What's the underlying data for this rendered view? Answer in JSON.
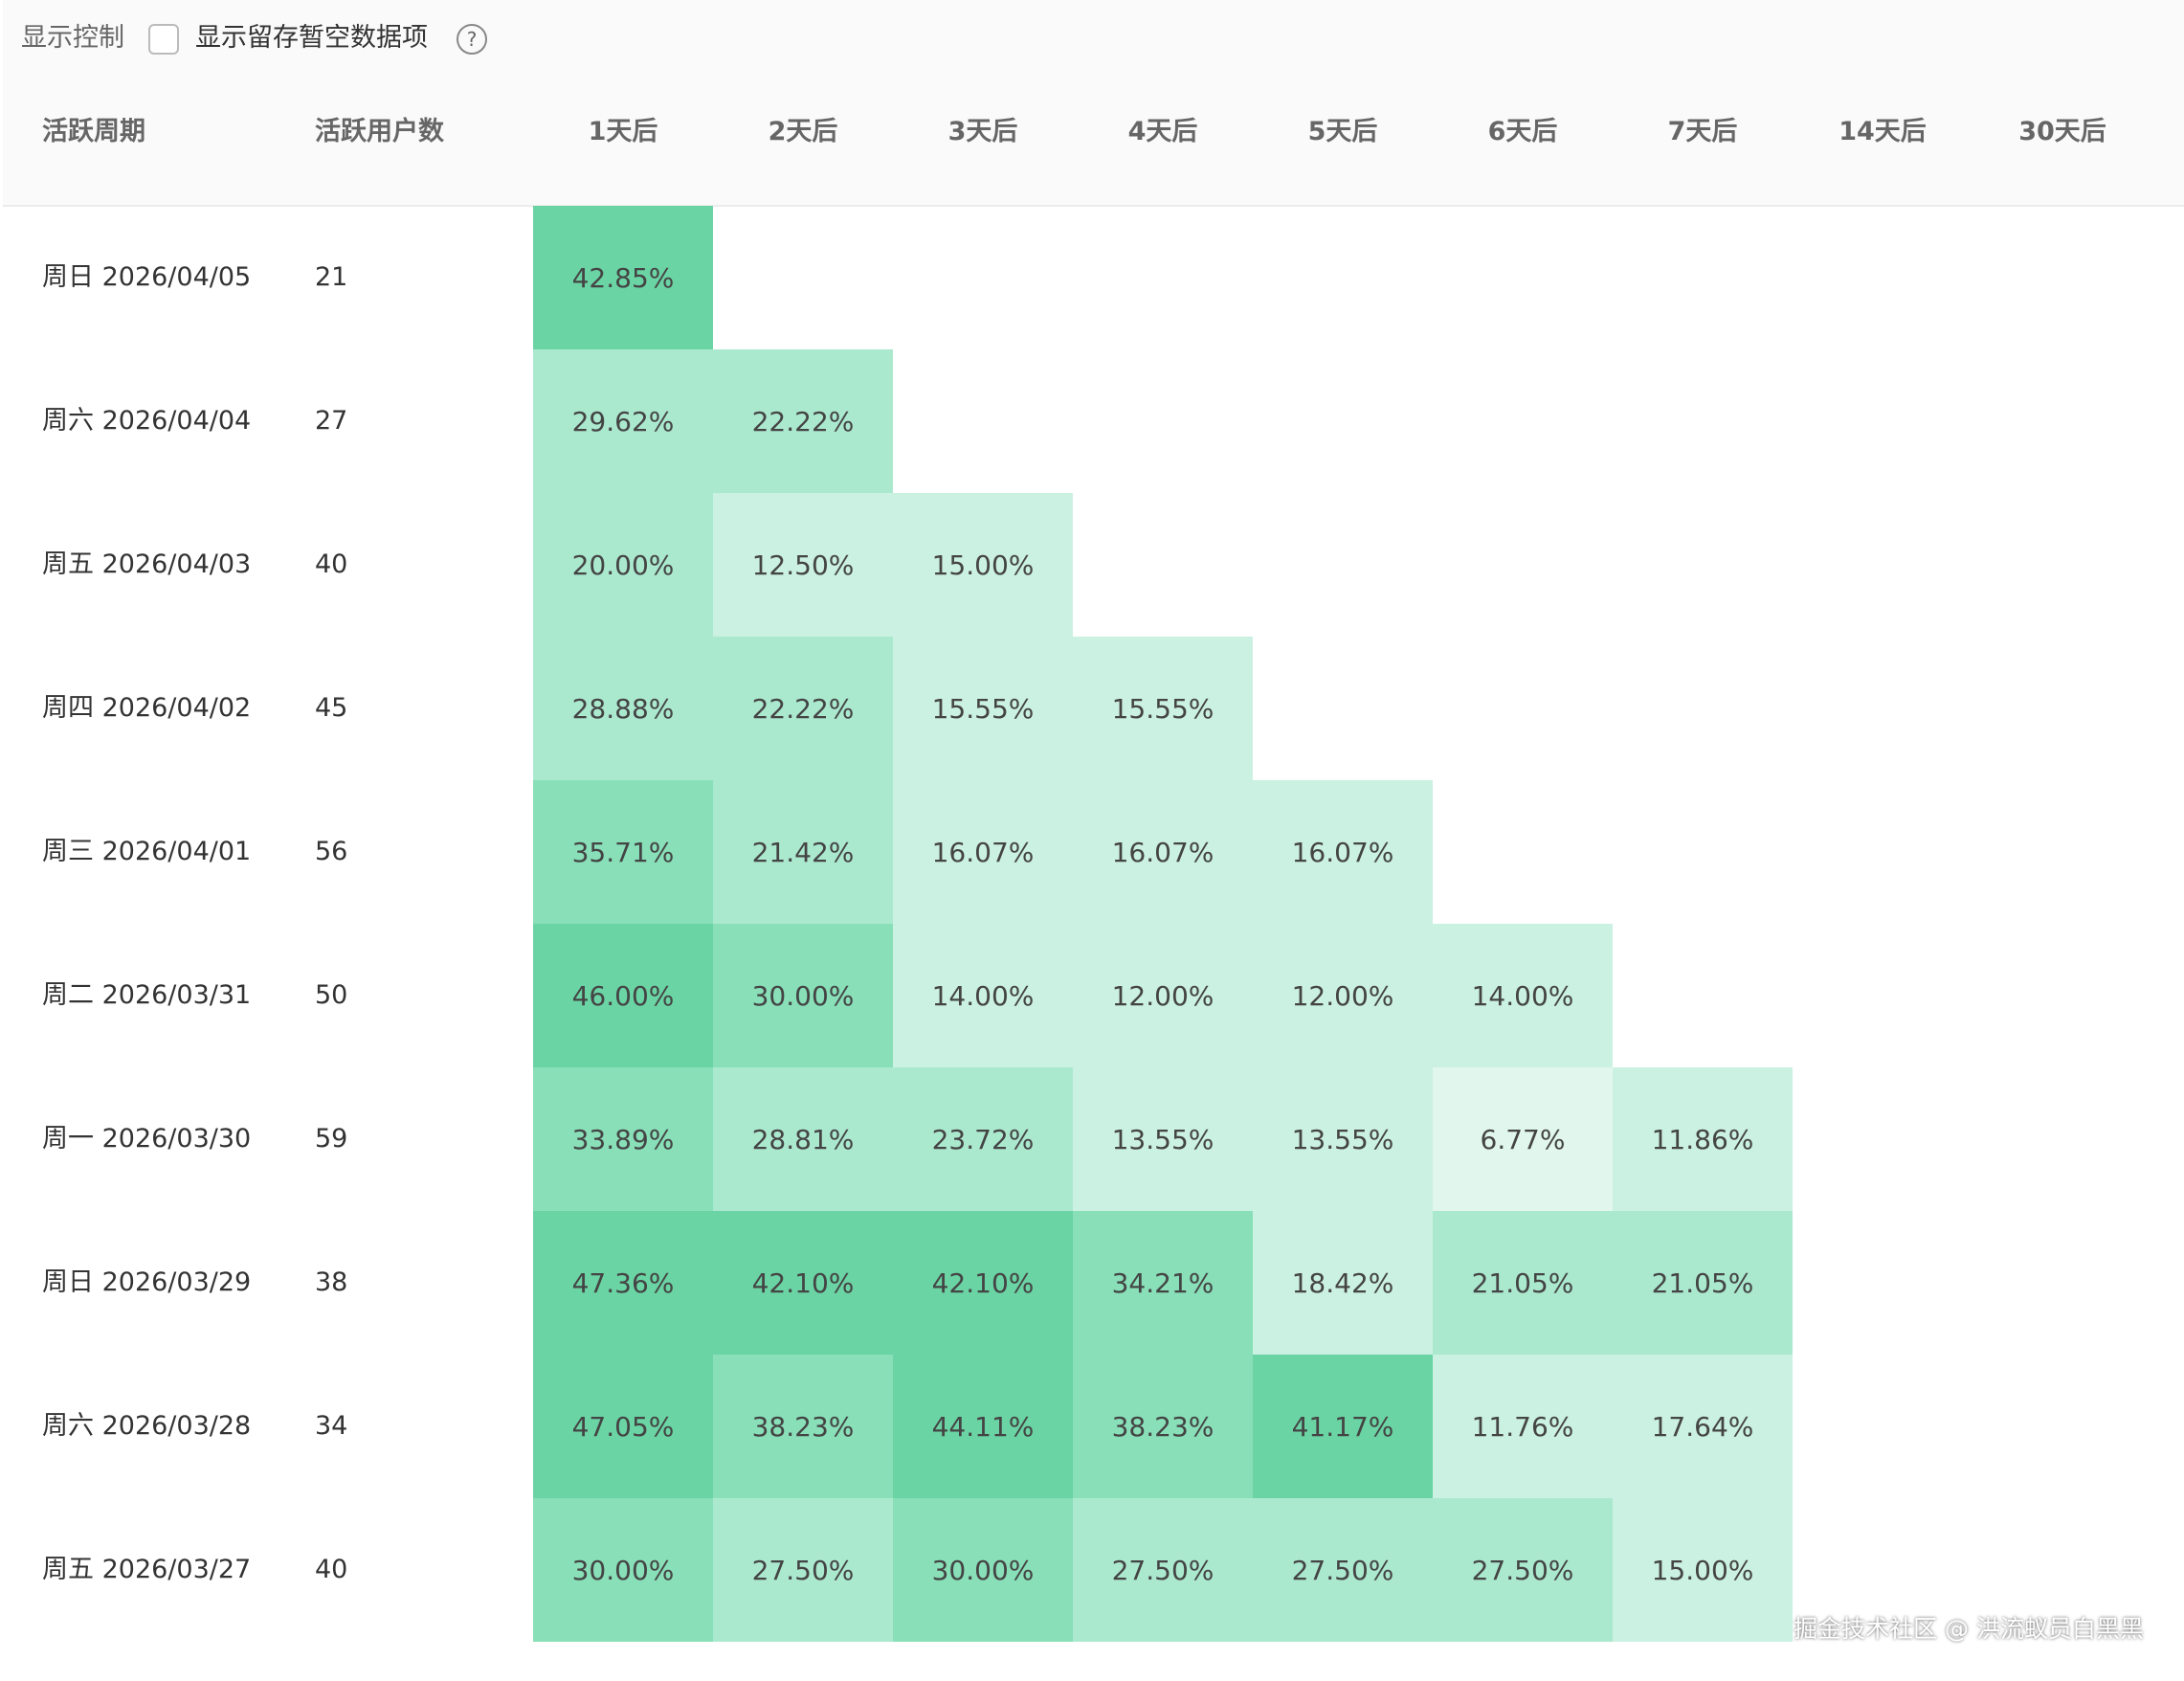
{
  "controls": {
    "label": "显示控制",
    "checkbox_label": "显示留存暂空数据项",
    "help": "?"
  },
  "table": {
    "columns": [
      "活跃周期",
      "活跃用户数",
      "1天后",
      "2天后",
      "3天后",
      "4天后",
      "5天后",
      "6天后",
      "7天后",
      "14天后",
      "30天后"
    ],
    "rows": [
      {
        "period": "周日 2026/04/05",
        "users": "21",
        "cells": [
          "42.85%"
        ]
      },
      {
        "period": "周六 2026/04/04",
        "users": "27",
        "cells": [
          "29.62%",
          "22.22%"
        ]
      },
      {
        "period": "周五 2026/04/03",
        "users": "40",
        "cells": [
          "20.00%",
          "12.50%",
          "15.00%"
        ]
      },
      {
        "period": "周四 2026/04/02",
        "users": "45",
        "cells": [
          "28.88%",
          "22.22%",
          "15.55%",
          "15.55%"
        ]
      },
      {
        "period": "周三 2026/04/01",
        "users": "56",
        "cells": [
          "35.71%",
          "21.42%",
          "16.07%",
          "16.07%",
          "16.07%"
        ]
      },
      {
        "period": "周二 2026/03/31",
        "users": "50",
        "cells": [
          "46.00%",
          "30.00%",
          "14.00%",
          "12.00%",
          "12.00%",
          "14.00%"
        ]
      },
      {
        "period": "周一 2026/03/30",
        "users": "59",
        "cells": [
          "33.89%",
          "28.81%",
          "23.72%",
          "13.55%",
          "13.55%",
          "6.77%",
          "11.86%"
        ]
      },
      {
        "period": "周日 2026/03/29",
        "users": "38",
        "cells": [
          "47.36%",
          "42.10%",
          "42.10%",
          "34.21%",
          "18.42%",
          "21.05%",
          "21.05%"
        ]
      },
      {
        "period": "周六 2026/03/28",
        "users": "34",
        "cells": [
          "47.05%",
          "38.23%",
          "44.11%",
          "38.23%",
          "41.17%",
          "11.76%",
          "17.64%"
        ]
      },
      {
        "period": "周五 2026/03/27",
        "users": "40",
        "cells": [
          "30.00%",
          "27.50%",
          "30.00%",
          "27.50%",
          "27.50%",
          "27.50%",
          "15.00%"
        ]
      }
    ]
  },
  "watermark": "掘金技术社区 @ 洪流蚁员白黑黑"
}
